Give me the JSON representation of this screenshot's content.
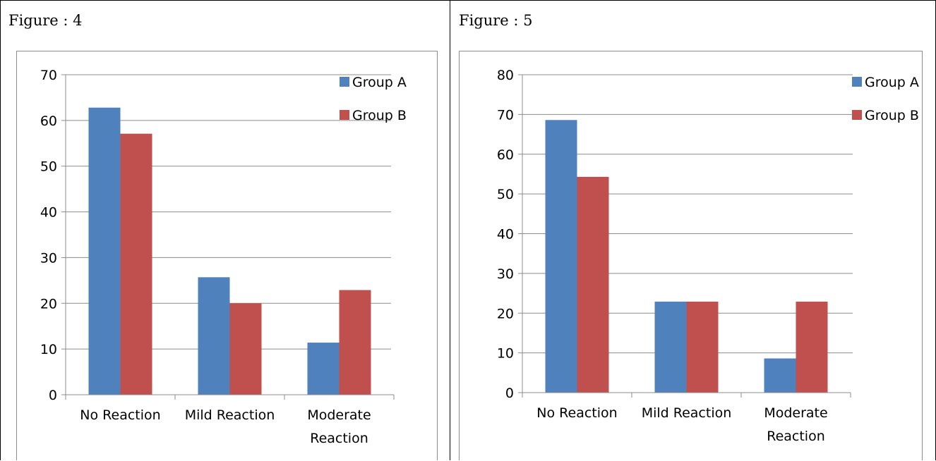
{
  "figures": [
    {
      "caption": "Figure : 4",
      "chart_data": {
        "type": "bar",
        "categories": [
          "No Reaction",
          "Mild Reaction",
          "Moderate Reaction"
        ],
        "series": [
          {
            "name": "Group A",
            "values": [
              62.8,
              25.7,
              11.4
            ],
            "color": "#4f81bd"
          },
          {
            "name": "Group B",
            "values": [
              57.1,
              20.0,
              22.9
            ],
            "color": "#c0504d"
          }
        ],
        "title": "",
        "xlabel": "",
        "ylabel": "",
        "ylim": [
          0,
          70
        ],
        "yticks": [
          0,
          10,
          20,
          30,
          40,
          50,
          60,
          70
        ],
        "grid": true,
        "legend": "top-right"
      }
    },
    {
      "caption": "Figure : 5",
      "chart_data": {
        "type": "bar",
        "categories": [
          "No Reaction",
          "Mild Reaction",
          "Moderate Reaction"
        ],
        "series": [
          {
            "name": "Group A",
            "values": [
              68.6,
              22.9,
              8.6
            ],
            "color": "#4f81bd"
          },
          {
            "name": "Group B",
            "values": [
              54.3,
              22.9,
              22.9
            ],
            "color": "#c0504d"
          }
        ],
        "title": "",
        "xlabel": "",
        "ylabel": "",
        "ylim": [
          0,
          80
        ],
        "yticks": [
          0,
          10,
          20,
          30,
          40,
          50,
          60,
          70,
          80
        ],
        "grid": true,
        "legend": "top-right"
      }
    }
  ]
}
